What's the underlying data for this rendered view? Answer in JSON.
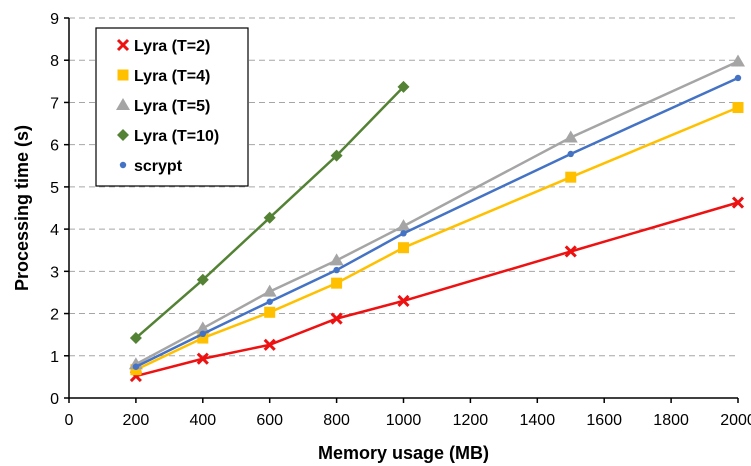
{
  "chart_data": {
    "type": "line",
    "title": "",
    "xlabel": "Memory usage (MB)",
    "ylabel": "Processing time (s)",
    "xlim": [
      0,
      2000
    ],
    "ylim": [
      0,
      9
    ],
    "xticks": [
      0,
      200,
      400,
      600,
      800,
      1000,
      1200,
      1400,
      1600,
      1800,
      2000
    ],
    "yticks": [
      0,
      1,
      2,
      3,
      4,
      5,
      6,
      7,
      8,
      9
    ],
    "grid": "horizontal dashed",
    "legend_position": "top-left",
    "series": [
      {
        "name": "Lyra (T=2)",
        "color": "#ee1111",
        "marker": "x",
        "x": [
          200,
          400,
          600,
          800,
          1000,
          1500,
          2000
        ],
        "y": [
          0.52,
          0.93,
          1.26,
          1.88,
          2.3,
          3.47,
          4.63
        ]
      },
      {
        "name": "Lyra (T=4)",
        "color": "#ffc000",
        "marker": "square",
        "x": [
          200,
          400,
          600,
          800,
          1000,
          1500,
          2000
        ],
        "y": [
          0.67,
          1.42,
          2.03,
          2.72,
          3.56,
          5.23,
          6.88
        ]
      },
      {
        "name": "Lyra (T=5)",
        "color": "#a5a5a5",
        "marker": "triangle",
        "x": [
          200,
          400,
          600,
          800,
          1000,
          1500,
          2000
        ],
        "y": [
          0.8,
          1.65,
          2.52,
          3.26,
          4.07,
          6.17,
          7.97
        ]
      },
      {
        "name": "Lyra (T=10)",
        "color": "#548235",
        "marker": "diamond",
        "x": [
          200,
          400,
          600,
          800,
          1000
        ],
        "y": [
          1.42,
          2.8,
          4.27,
          5.74,
          7.37
        ]
      },
      {
        "name": "scrypt",
        "color": "#4472c4",
        "marker": "dot",
        "x": [
          200,
          400,
          600,
          800,
          1000,
          1500,
          2000
        ],
        "y": [
          0.74,
          1.52,
          2.28,
          3.03,
          3.9,
          5.78,
          7.58
        ]
      }
    ]
  }
}
